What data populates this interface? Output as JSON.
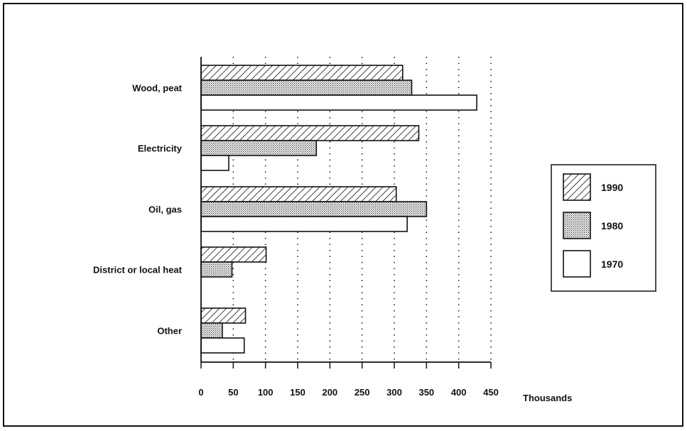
{
  "chart_data": {
    "type": "bar",
    "orientation": "horizontal",
    "title": "",
    "categories": [
      "Wood, peat",
      "Electricity",
      "Oil, gas",
      "District or local heat",
      "Other"
    ],
    "series": [
      {
        "name": "1990",
        "pattern": "hatch",
        "values": [
          313,
          338,
          303,
          101,
          69
        ]
      },
      {
        "name": "1980",
        "pattern": "dots",
        "values": [
          327,
          179,
          350,
          48,
          33
        ]
      },
      {
        "name": "1970",
        "pattern": "blank",
        "values": [
          428,
          43,
          320,
          0,
          67
        ]
      }
    ],
    "xlim": [
      0,
      450
    ],
    "x_ticks": [
      0,
      50,
      100,
      150,
      200,
      250,
      300,
      350,
      400,
      450
    ],
    "xlabel": "Thousands",
    "ylabel": "",
    "grid": "dotted vertical",
    "legend_position": "right"
  },
  "colors": {
    "ink": "#111111",
    "fill": "#ffffff"
  }
}
